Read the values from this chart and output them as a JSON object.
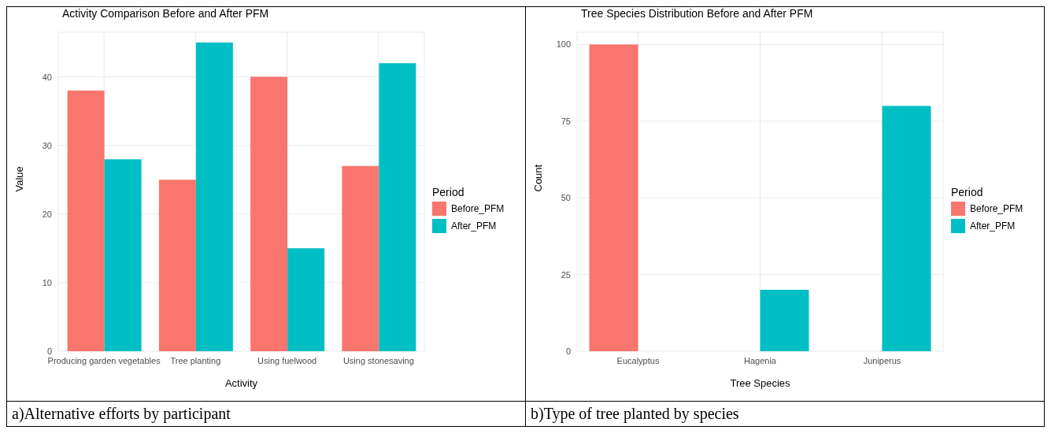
{
  "chart_data": [
    {
      "type": "bar",
      "title": "Activity Comparison Before and After PFM",
      "xlabel": "Activity",
      "ylabel": "Value",
      "legend_title": "Period",
      "categories": [
        "Producing garden vegetables",
        "Tree planting",
        "Using fuelwood",
        "Using stonesaving"
      ],
      "series": [
        {
          "name": "Before_PFM",
          "color": "#f8766d",
          "values": [
            38,
            25,
            40,
            27
          ]
        },
        {
          "name": "After_PFM",
          "color": "#00bfc4",
          "values": [
            28,
            45,
            15,
            42
          ]
        }
      ],
      "ylim": [
        0,
        46.5
      ],
      "yticks": [
        0,
        10,
        20,
        30,
        40
      ],
      "grid": true,
      "legend": "right",
      "annotations": [
        "a)Alternative efforts by participant"
      ]
    },
    {
      "type": "bar",
      "title": "Tree Species Distribution Before and After PFM",
      "xlabel": "Tree Species",
      "ylabel": "Count",
      "legend_title": "Period",
      "categories": [
        "Eucalyptus",
        "Hagenia",
        "Juniperus"
      ],
      "series": [
        {
          "name": "Before_PFM",
          "color": "#f8766d",
          "values": [
            100,
            null,
            null
          ]
        },
        {
          "name": "After_PFM",
          "color": "#00bfc4",
          "values": [
            null,
            20,
            80
          ]
        }
      ],
      "ylim": [
        0,
        104
      ],
      "yticks": [
        0,
        25,
        50,
        75,
        100
      ],
      "grid": true,
      "legend": "right",
      "annotations": [
        "b)Type of tree planted by species"
      ]
    }
  ]
}
